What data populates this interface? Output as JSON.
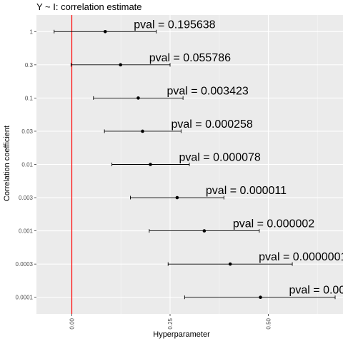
{
  "chart_data": {
    "type": "errorbar",
    "title": "Y ~ I: correlation estimate",
    "xlabel": "Hyperparameter",
    "ylabel": "Correlation coefficient",
    "xlim": [
      -0.09,
      0.69
    ],
    "x_ticks": [
      "0.00",
      "0.25",
      "0.50"
    ],
    "x_tick_values": [
      0,
      0.25,
      0.5
    ],
    "reference_line": {
      "x": 0,
      "color": "#ff0000"
    },
    "grid": true,
    "panel_color": "#ebebeb",
    "points": [
      {
        "y_label": "1",
        "estimate": 0.085,
        "lower": -0.045,
        "upper": 0.215,
        "pval_text": "pval = 0.195638"
      },
      {
        "y_label": "0.3",
        "estimate": 0.124,
        "lower": -0.002,
        "upper": 0.25,
        "pval_text": "pval = 0.055786"
      },
      {
        "y_label": "0.1",
        "estimate": 0.169,
        "lower": 0.055,
        "upper": 0.283,
        "pval_text": "pval = 0.003423"
      },
      {
        "y_label": "0.03",
        "estimate": 0.18,
        "lower": 0.083,
        "upper": 0.278,
        "pval_text": "pval = 0.000258"
      },
      {
        "y_label": "0.01",
        "estimate": 0.2,
        "lower": 0.102,
        "upper": 0.299,
        "pval_text": "pval = 0.000078"
      },
      {
        "y_label": "0.003",
        "estimate": 0.268,
        "lower": 0.149,
        "upper": 0.387,
        "pval_text": "pval = 0.000011"
      },
      {
        "y_label": "0.001",
        "estimate": 0.337,
        "lower": 0.197,
        "upper": 0.477,
        "pval_text": "pval = 0.000002"
      },
      {
        "y_label": "0.0003",
        "estimate": 0.403,
        "lower": 0.245,
        "upper": 0.561,
        "pval_text": "pval = 0.0000001"
      },
      {
        "y_label": "0.0001",
        "estimate": 0.48,
        "lower": 0.287,
        "upper": 0.67,
        "pval_text": "pval = 0.00"
      }
    ]
  }
}
